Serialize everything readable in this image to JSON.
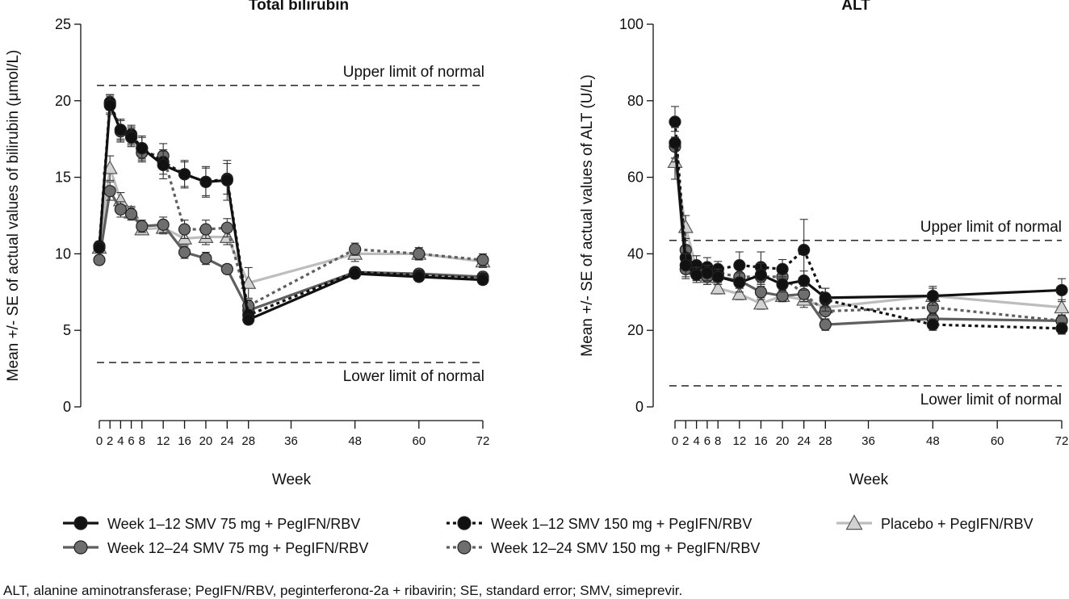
{
  "legend": {
    "items": [
      {
        "label": "Week 1–12 SMV 75 mg + PegIFN/RBV",
        "series": "w112_75"
      },
      {
        "label": "Week 1–12 SMV 150 mg + PegIFN/RBV",
        "series": "w112_150"
      },
      {
        "label": "Placebo + PegIFN/RBV",
        "series": "placebo"
      },
      {
        "label": "Week 12–24 SMV 75 mg + PegIFN/RBV",
        "series": "w1224_75"
      },
      {
        "label": "Week 12–24 SMV 150 mg + PegIFN/RBV",
        "series": "w1224_150"
      }
    ]
  },
  "footnote": "ALT, alanine aminotransferase; PegIFN/RBV, peginterferonα-2a + ribavirin; SE, standard error; SMV, simeprevir.",
  "series_styles": {
    "w112_75": {
      "color": "#111111",
      "marker": "circle",
      "dash": "solid",
      "fill": "#111111"
    },
    "w112_150": {
      "color": "#111111",
      "marker": "circle",
      "dash": "dotted",
      "fill": "#111111"
    },
    "placebo": {
      "color": "#bdbdbd",
      "marker": "triangle",
      "dash": "solid",
      "fill": "#d2d2d2"
    },
    "w1224_75": {
      "color": "#5f5f5f",
      "marker": "circle",
      "dash": "solid",
      "fill": "#6e6e6e"
    },
    "w1224_150": {
      "color": "#5f5f5f",
      "marker": "circle",
      "dash": "dotted",
      "fill": "#6e6e6e"
    }
  },
  "chart_data": [
    {
      "type": "line",
      "title": "Total bilirubin",
      "xlabel": "Week",
      "ylabel": "Mean +/- SE of actual values of bilirubin (μmol/L)",
      "xlim": [
        0,
        72
      ],
      "ylim": [
        0,
        25
      ],
      "yticks": [
        0,
        5,
        10,
        15,
        20,
        25
      ],
      "xticks": [
        0,
        2,
        4,
        6,
        8,
        12,
        16,
        20,
        24,
        28,
        36,
        48,
        60,
        72
      ],
      "reference_lines": [
        {
          "label": "Upper limit of normal",
          "y": 21
        },
        {
          "label": "Lower limit of normal",
          "y": 2.9
        }
      ],
      "series": [
        {
          "key": "placebo",
          "x": [
            0,
            2,
            4,
            6,
            8,
            12,
            16,
            20,
            24,
            28,
            48,
            60,
            72
          ],
          "y": [
            10.4,
            15.6,
            13.5,
            12.7,
            11.6,
            11.7,
            11.0,
            11.1,
            11.1,
            8.1,
            10.0,
            10.0,
            9.5
          ],
          "se": [
            0.3,
            0.8,
            0.5,
            0.4,
            0.3,
            0.4,
            0.4,
            0.5,
            0.5,
            1.0,
            0.5,
            0.4,
            0.4
          ]
        },
        {
          "key": "w1224_75",
          "x": [
            0,
            2,
            4,
            6,
            8,
            12,
            16,
            20,
            24,
            28,
            48,
            60,
            72
          ],
          "y": [
            9.6,
            14.1,
            12.9,
            12.6,
            11.8,
            11.9,
            10.1,
            9.7,
            9.0,
            6.3,
            8.8,
            8.7,
            8.5
          ],
          "se": [
            0.3,
            0.6,
            0.5,
            0.4,
            0.4,
            0.5,
            0.4,
            0.4,
            0.3,
            0.3,
            0.3,
            0.3,
            0.3
          ]
        },
        {
          "key": "w1224_150",
          "x": [
            0,
            2,
            4,
            6,
            8,
            12,
            16,
            20,
            24,
            28,
            48,
            60,
            72
          ],
          "y": [
            10.5,
            19.8,
            18.0,
            17.7,
            16.6,
            16.4,
            11.6,
            11.6,
            11.7,
            6.6,
            10.3,
            10.0,
            9.6
          ],
          "se": [
            0.3,
            0.6,
            0.7,
            0.6,
            0.6,
            0.8,
            0.6,
            0.6,
            0.6,
            0.4,
            0.4,
            0.4,
            0.4
          ]
        },
        {
          "key": "w112_150",
          "x": [
            0,
            2,
            4,
            6,
            8,
            12,
            16,
            20,
            24,
            28,
            48,
            60,
            72
          ],
          "y": [
            10.5,
            19.9,
            18.1,
            17.8,
            16.9,
            16.0,
            15.2,
            14.7,
            14.9,
            6.0,
            8.8,
            8.6,
            8.4
          ],
          "se": [
            0.3,
            0.5,
            0.6,
            0.6,
            0.7,
            0.8,
            0.8,
            0.9,
            1.0,
            0.3,
            0.3,
            0.3,
            0.3
          ]
        },
        {
          "key": "w112_75",
          "x": [
            0,
            2,
            4,
            6,
            8,
            12,
            16,
            20,
            24,
            28,
            48,
            60,
            72
          ],
          "y": [
            10.4,
            19.7,
            18.1,
            17.6,
            16.9,
            15.8,
            15.2,
            14.7,
            14.8,
            5.7,
            8.7,
            8.5,
            8.3
          ],
          "se": [
            0.3,
            0.6,
            0.7,
            0.6,
            0.8,
            0.9,
            0.9,
            1.0,
            1.3,
            0.3,
            0.3,
            0.3,
            0.3
          ]
        }
      ]
    },
    {
      "type": "line",
      "title": "ALT",
      "xlabel": "Week",
      "ylabel": "Mean +/- SE of actual values of ALT (U/L)",
      "xlim": [
        0,
        72
      ],
      "ylim": [
        0,
        100
      ],
      "yticks": [
        0,
        20,
        40,
        60,
        80,
        100
      ],
      "xticks": [
        0,
        2,
        4,
        6,
        8,
        12,
        16,
        20,
        24,
        28,
        36,
        48,
        60,
        72
      ],
      "reference_lines": [
        {
          "label": "Upper limit of normal",
          "y": 43.5
        },
        {
          "label": "Lower limit of normal",
          "y": 5.5
        }
      ],
      "series": [
        {
          "key": "placebo",
          "x": [
            0,
            2,
            4,
            6,
            8,
            12,
            16,
            20,
            24,
            28,
            48,
            72
          ],
          "y": [
            64,
            47,
            36,
            34,
            31,
            29.5,
            27,
            29,
            28,
            26,
            29,
            26
          ],
          "se": [
            4.5,
            3,
            2,
            2,
            1.5,
            1.5,
            1.5,
            1.5,
            2,
            2,
            2,
            2
          ]
        },
        {
          "key": "w1224_75",
          "x": [
            0,
            2,
            4,
            6,
            8,
            12,
            16,
            20,
            24,
            28,
            48,
            72
          ],
          "y": [
            68,
            36,
            35,
            34,
            34,
            33,
            30,
            29,
            29.5,
            21.5,
            23,
            22.5
          ],
          "se": [
            4,
            2.5,
            2,
            2,
            2,
            2,
            2,
            1.5,
            2,
            1.5,
            1.5,
            1.5
          ]
        },
        {
          "key": "w1224_150",
          "x": [
            0,
            2,
            4,
            6,
            8,
            12,
            16,
            20,
            24,
            28,
            48,
            72
          ],
          "y": [
            69,
            41,
            36,
            35,
            35,
            34,
            34,
            34,
            29.5,
            25,
            26,
            22.5
          ],
          "se": [
            4,
            3,
            2,
            2,
            2,
            2,
            2,
            2,
            2,
            2,
            2,
            1.5
          ]
        },
        {
          "key": "w112_150",
          "x": [
            0,
            2,
            4,
            6,
            8,
            12,
            16,
            20,
            24,
            28,
            48,
            72
          ],
          "y": [
            74.5,
            39,
            37,
            36.5,
            36,
            37,
            36.5,
            36,
            41,
            28,
            21.5,
            20.5
          ],
          "se": [
            4,
            3,
            2.5,
            2.5,
            2,
            3.5,
            4,
            2.5,
            8,
            3,
            1.5,
            1.5
          ]
        },
        {
          "key": "w112_75",
          "x": [
            0,
            2,
            4,
            6,
            8,
            12,
            16,
            20,
            24,
            28,
            48,
            72
          ],
          "y": [
            69,
            37,
            34.5,
            35,
            34,
            32.5,
            34.5,
            32,
            33,
            28.5,
            29,
            30.5
          ],
          "se": [
            4,
            3,
            2,
            2,
            2,
            2.5,
            3,
            2,
            2.5,
            2.5,
            2.5,
            3
          ]
        }
      ]
    }
  ]
}
